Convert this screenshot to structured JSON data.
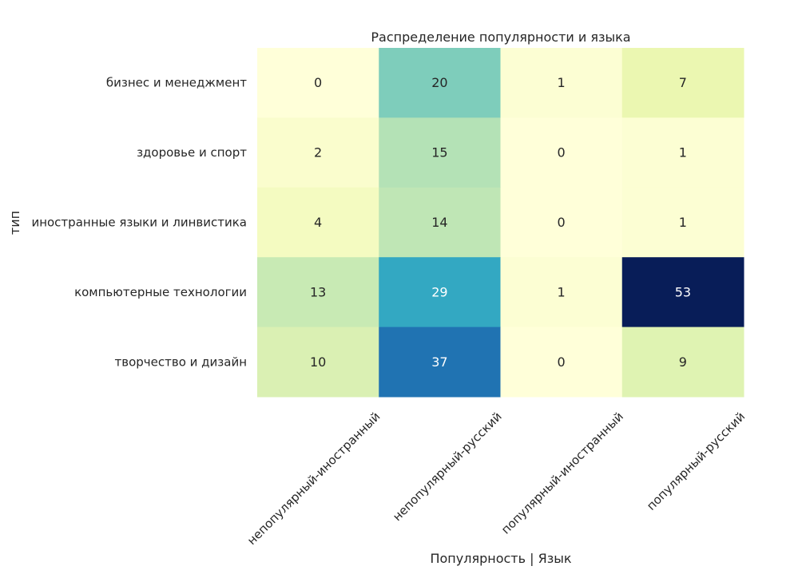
{
  "chart_data": {
    "type": "heatmap",
    "title": "Распределение популярности и языка",
    "xlabel": "Популярность | Язык",
    "ylabel": "тип",
    "x_categories": [
      "непопулярный-иностранный",
      "непопулярный-русский",
      "популярный-иностранный",
      "популярный-русский"
    ],
    "y_categories": [
      "бизнес и менеджмент",
      "здоровье и спорт",
      "иностранные языки и линвистика",
      "компьютерные технологии",
      "творчество и дизайн"
    ],
    "values": [
      [
        0,
        20,
        1,
        7
      ],
      [
        2,
        15,
        0,
        1
      ],
      [
        4,
        14,
        0,
        1
      ],
      [
        13,
        29,
        1,
        53
      ],
      [
        10,
        37,
        0,
        9
      ]
    ],
    "value_range": [
      0,
      53
    ],
    "colormap": "YlGnBu",
    "annotations": true,
    "colorbar": false
  }
}
